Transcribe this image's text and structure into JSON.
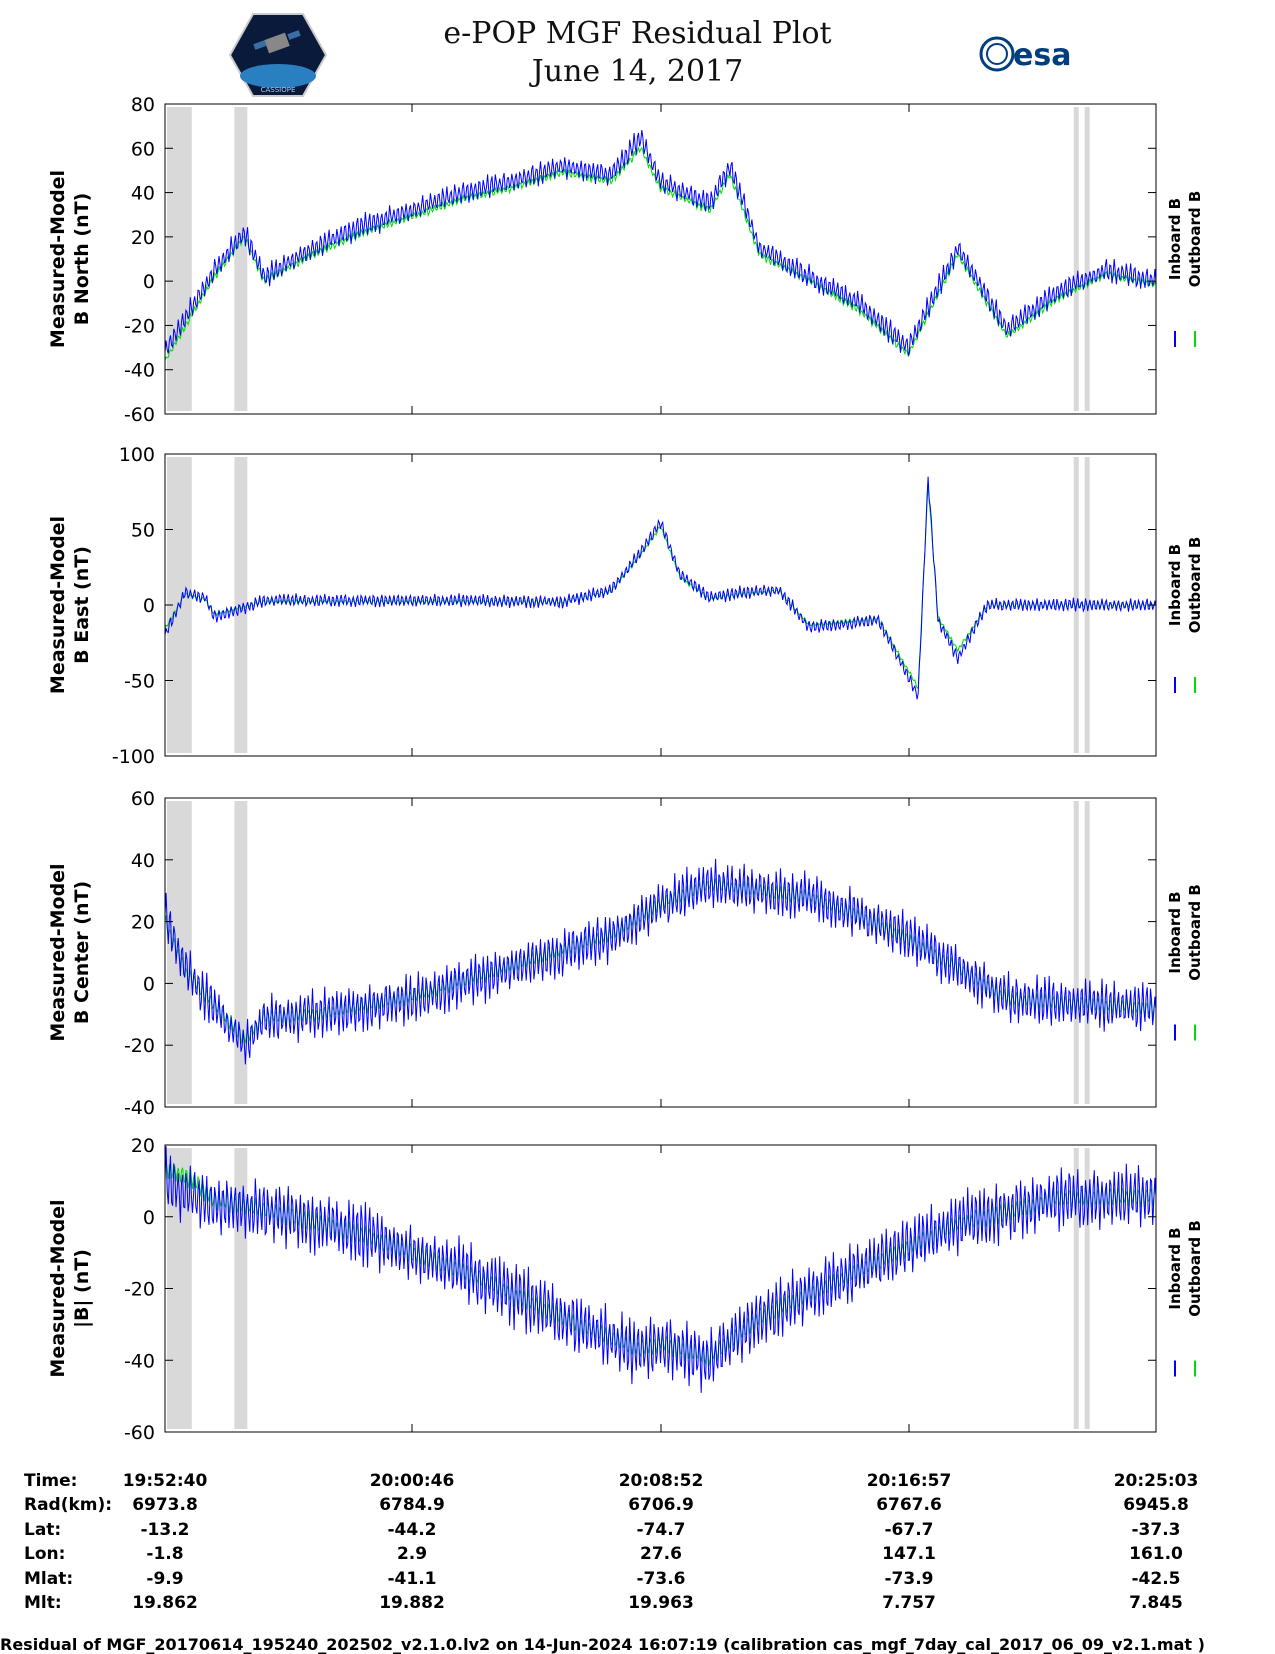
{
  "title": "e-POP MGF Residual Plot",
  "subtitle": "June 14, 2017",
  "logos": {
    "left": "CASSIOPE",
    "right": "esa"
  },
  "colors": {
    "inboard": "#0000ff",
    "outboard": "#00dd00",
    "gap": "#d9d9d9",
    "axis": "#000000"
  },
  "chart_data": [
    {
      "type": "line",
      "ylabel": [
        "Measured-Model",
        "B North (nT)"
      ],
      "ylim": [
        -60,
        80
      ],
      "yticks": [
        -60,
        -40,
        -20,
        0,
        20,
        40,
        60,
        80
      ],
      "legend": [
        "Inboard B",
        "Outboard B"
      ],
      "legend_position": "right",
      "x": [
        0,
        0.05,
        0.08,
        0.1,
        0.15,
        0.2,
        0.25,
        0.3,
        0.35,
        0.4,
        0.45,
        0.48,
        0.5,
        0.55,
        0.57,
        0.6,
        0.65,
        0.7,
        0.75,
        0.8,
        0.85,
        0.9,
        0.95,
        1.0
      ],
      "series": [
        {
          "name": "Inboard B",
          "values": [
            -32,
            5,
            22,
            2,
            15,
            25,
            32,
            40,
            45,
            52,
            48,
            65,
            45,
            35,
            52,
            15,
            2,
            -10,
            -30,
            15,
            -22,
            -5,
            5,
            0
          ]
        },
        {
          "name": "Outboard B",
          "values": [
            -36,
            2,
            20,
            0,
            12,
            22,
            29,
            37,
            42,
            49,
            45,
            60,
            42,
            32,
            48,
            12,
            0,
            -13,
            -33,
            12,
            -25,
            -8,
            3,
            -2
          ]
        }
      ]
    },
    {
      "type": "line",
      "ylabel": [
        "Measured-Model",
        "B East (nT)"
      ],
      "ylim": [
        -100,
        100
      ],
      "yticks": [
        -100,
        -50,
        0,
        50,
        100
      ],
      "legend": [
        "Inboard B",
        "Outboard B"
      ],
      "legend_position": "right",
      "x": [
        0,
        0.02,
        0.04,
        0.05,
        0.08,
        0.1,
        0.2,
        0.3,
        0.4,
        0.45,
        0.48,
        0.5,
        0.52,
        0.55,
        0.58,
        0.62,
        0.65,
        0.72,
        0.76,
        0.77,
        0.78,
        0.8,
        0.83,
        0.9,
        1.0
      ],
      "series": [
        {
          "name": "Inboard B",
          "values": [
            -20,
            8,
            5,
            -8,
            -2,
            3,
            3,
            3,
            2,
            10,
            35,
            55,
            20,
            5,
            8,
            10,
            -15,
            -10,
            -60,
            85,
            -10,
            -35,
            0,
            0,
            0
          ]
        },
        {
          "name": "Outboard B",
          "values": [
            -16,
            7,
            4,
            -6,
            -1,
            2,
            2,
            2,
            2,
            9,
            33,
            52,
            18,
            4,
            7,
            9,
            -13,
            -9,
            -55,
            80,
            -8,
            -30,
            0,
            0,
            0
          ]
        }
      ]
    },
    {
      "type": "line",
      "ylabel": [
        "Measured-Model",
        "B Center (nT)"
      ],
      "ylim": [
        -40,
        60
      ],
      "yticks": [
        -40,
        -20,
        0,
        20,
        40,
        60
      ],
      "legend": [
        "Inboard B",
        "Outboard B"
      ],
      "legend_position": "right",
      "x": [
        0,
        0.02,
        0.05,
        0.08,
        0.1,
        0.15,
        0.2,
        0.25,
        0.3,
        0.35,
        0.4,
        0.45,
        0.5,
        0.55,
        0.6,
        0.65,
        0.7,
        0.75,
        0.8,
        0.85,
        0.9,
        0.95,
        1.0
      ],
      "series": [
        {
          "name": "Inboard B",
          "values": [
            22,
            5,
            -8,
            -20,
            -12,
            -10,
            -8,
            -5,
            0,
            5,
            10,
            15,
            25,
            32,
            30,
            28,
            22,
            15,
            5,
            -5,
            -6,
            -7,
            -8
          ]
        },
        {
          "name": "Outboard B",
          "values": [
            20,
            4,
            -7,
            -18,
            -11,
            -10,
            -7,
            -4,
            1,
            6,
            11,
            16,
            26,
            32,
            30,
            28,
            22,
            14,
            5,
            -5,
            -6,
            -7,
            -8
          ]
        }
      ]
    },
    {
      "type": "line",
      "ylabel": [
        "Measured-Model",
        "|B| (nT)"
      ],
      "ylim": [
        -60,
        20
      ],
      "yticks": [
        -60,
        -40,
        -20,
        0,
        20
      ],
      "legend": [
        "Inboard B",
        "Outboard B"
      ],
      "legend_position": "right",
      "x": [
        0,
        0.03,
        0.05,
        0.1,
        0.2,
        0.3,
        0.4,
        0.48,
        0.5,
        0.55,
        0.6,
        0.7,
        0.8,
        0.9,
        1.0
      ],
      "series": [
        {
          "name": "Inboard B",
          "values": [
            10,
            5,
            3,
            2,
            -5,
            -15,
            -28,
            -38,
            -35,
            -40,
            -28,
            -15,
            -2,
            5,
            6
          ]
        },
        {
          "name": "Outboard B",
          "values": [
            14,
            10,
            5,
            2,
            -5,
            -15,
            -28,
            -37,
            -35,
            -39,
            -28,
            -15,
            -2,
            5,
            6
          ]
        }
      ]
    }
  ],
  "xaxis_ticks": [
    "19:52:40",
    "20:00:46",
    "20:08:52",
    "20:16:57",
    "20:25:03"
  ],
  "ephemeris": {
    "labels": [
      "Time:",
      "Rad(km):",
      "Lat:",
      "Lon:",
      "Mlat:",
      "Mlt:"
    ],
    "rows": [
      [
        "19:52:40",
        "20:00:46",
        "20:08:52",
        "20:16:57",
        "20:25:03"
      ],
      [
        "6973.8",
        "6784.9",
        "6706.9",
        "6767.6",
        "6945.8"
      ],
      [
        "-13.2",
        "-44.2",
        "-74.7",
        "-67.7",
        "-37.3"
      ],
      [
        "-1.8",
        "2.9",
        "27.6",
        "147.1",
        "161.0"
      ],
      [
        "-9.9",
        "-41.1",
        "-73.6",
        "-73.9",
        "-42.5"
      ],
      [
        "19.862",
        "19.882",
        "19.963",
        "7.757",
        "7.845"
      ]
    ]
  },
  "footer": "Residual of MGF_20170614_195240_202502_v2.1.0.lv2 on 14-Jun-2024 16:07:19 (calibration cas_mgf_7day_cal_2017_06_09_v2.1.mat )"
}
